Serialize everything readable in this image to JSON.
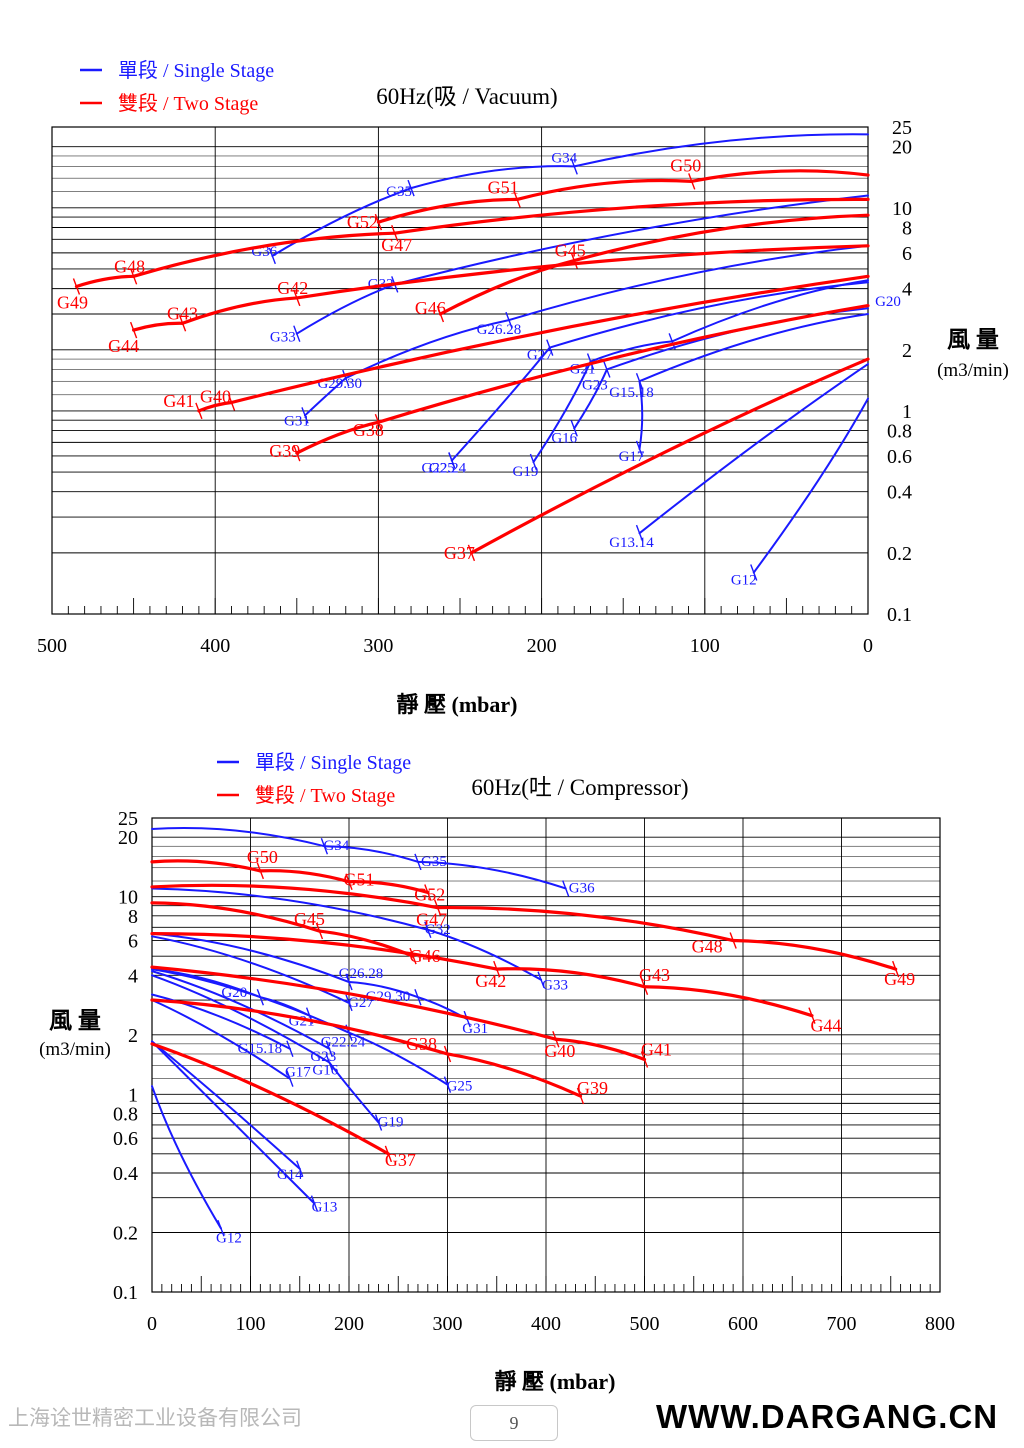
{
  "chart_data": [
    {
      "type": "line",
      "title": "60Hz(吸 / Vacuum)",
      "xlabel": "靜 壓 (mbar)",
      "ylabel": [
        "風 量",
        "(m3/min)"
      ],
      "x_reversed": true,
      "xlim": [
        0,
        500
      ],
      "ylim": [
        0.1,
        25
      ],
      "yscale": "log",
      "x_ticks": [
        500,
        400,
        300,
        200,
        100,
        0
      ],
      "y_ticks": [
        25,
        20,
        10,
        8,
        6,
        4,
        2,
        1,
        0.8,
        0.6,
        0.4,
        0.2,
        0.1
      ],
      "grid": true,
      "legend": {
        "placement": "top-left",
        "entries": [
          {
            "name": "單段 / Single Stage",
            "color": "#1a1aff"
          },
          {
            "name": "雙段 / Two Stage",
            "color": "#ff0000"
          }
        ]
      },
      "series": [
        {
          "name": "G34",
          "stage": "single",
          "x": [
            0,
            180
          ],
          "y": [
            23,
            16
          ]
        },
        {
          "name": "G35",
          "stage": "single",
          "x": [
            180,
            280
          ],
          "y": [
            16,
            12.5
          ]
        },
        {
          "name": "G36",
          "stage": "single",
          "x": [
            280,
            365
          ],
          "y": [
            12.5,
            5.8
          ]
        },
        {
          "name": "G32",
          "stage": "single",
          "x": [
            0,
            290
          ],
          "y": [
            11.5,
            4.2
          ]
        },
        {
          "name": "G33",
          "stage": "single",
          "x": [
            290,
            350
          ],
          "y": [
            4.2,
            2.4
          ]
        },
        {
          "name": "G26.28",
          "stage": "single",
          "x": [
            0,
            220
          ],
          "y": [
            6.5,
            2.8
          ]
        },
        {
          "name": "G29.30",
          "stage": "single",
          "x": [
            220,
            320
          ],
          "y": [
            2.8,
            1.45
          ]
        },
        {
          "name": "G31",
          "stage": "single",
          "x": [
            320,
            345
          ],
          "y": [
            1.45,
            0.95
          ]
        },
        {
          "name": "G27",
          "stage": "single",
          "x": [
            0,
            195
          ],
          "y": [
            4.3,
            2.05
          ]
        },
        {
          "name": "G22.24",
          "stage": "single",
          "x": [
            195,
            255
          ],
          "y": [
            2.05,
            0.57
          ]
        },
        {
          "name": "G25",
          "stage": "single",
          "x": [
            255,
            255
          ],
          "y": [
            0.57,
            0.57
          ]
        },
        {
          "name": "G20",
          "stage": "single",
          "x": [
            0,
            120
          ],
          "y": [
            4.4,
            2.2
          ]
        },
        {
          "name": "G21",
          "stage": "single",
          "x": [
            120,
            170
          ],
          "y": [
            2.2,
            1.75
          ]
        },
        {
          "name": "G19",
          "stage": "single",
          "x": [
            170,
            205
          ],
          "y": [
            1.75,
            0.56
          ]
        },
        {
          "name": "G23",
          "stage": "single",
          "x": [
            0,
            160
          ],
          "y": [
            3.2,
            1.6
          ]
        },
        {
          "name": "G16",
          "stage": "single",
          "x": [
            160,
            180
          ],
          "y": [
            1.6,
            0.82
          ]
        },
        {
          "name": "G15.18",
          "stage": "single",
          "x": [
            0,
            140
          ],
          "y": [
            3.0,
            1.4
          ]
        },
        {
          "name": "G17",
          "stage": "single",
          "x": [
            140,
            140
          ],
          "y": [
            1.4,
            0.65
          ]
        },
        {
          "name": "G13.14",
          "stage": "single",
          "x": [
            0,
            140
          ],
          "y": [
            1.7,
            0.25
          ]
        },
        {
          "name": "G12",
          "stage": "single",
          "x": [
            0,
            70
          ],
          "y": [
            1.15,
            0.16
          ]
        },
        {
          "name": "G50",
          "stage": "two",
          "x": [
            0,
            108
          ],
          "y": [
            14.5,
            13.5
          ]
        },
        {
          "name": "G51",
          "stage": "two",
          "x": [
            108,
            215
          ],
          "y": [
            13.5,
            11
          ]
        },
        {
          "name": "G52",
          "stage": "two",
          "x": [
            215,
            300
          ],
          "y": [
            11,
            8.5
          ]
        },
        {
          "name": "G47",
          "stage": "two",
          "x": [
            0,
            290
          ],
          "y": [
            11,
            7.5
          ]
        },
        {
          "name": "G48",
          "stage": "two",
          "x": [
            290,
            450
          ],
          "y": [
            7.5,
            4.6
          ]
        },
        {
          "name": "G49",
          "stage": "two",
          "x": [
            450,
            485
          ],
          "y": [
            4.6,
            4.1
          ]
        },
        {
          "name": "G45",
          "stage": "two",
          "x": [
            0,
            180
          ],
          "y": [
            9.2,
            5.5
          ]
        },
        {
          "name": "G46",
          "stage": "two",
          "x": [
            180,
            262
          ],
          "y": [
            5.5,
            3
          ]
        },
        {
          "name": "G42",
          "stage": "two",
          "x": [
            0,
            350
          ],
          "y": [
            6.5,
            3.6
          ]
        },
        {
          "name": "G43",
          "stage": "two",
          "x": [
            350,
            420
          ],
          "y": [
            3.6,
            2.7
          ]
        },
        {
          "name": "G44",
          "stage": "two",
          "x": [
            420,
            450
          ],
          "y": [
            2.7,
            2.5
          ]
        },
        {
          "name": "G40",
          "stage": "two",
          "x": [
            0,
            390
          ],
          "y": [
            4.6,
            1.1
          ]
        },
        {
          "name": "G41",
          "stage": "two",
          "x": [
            390,
            410
          ],
          "y": [
            1.1,
            1.0
          ]
        },
        {
          "name": "G38",
          "stage": "two",
          "x": [
            0,
            300
          ],
          "y": [
            3.3,
            0.88
          ]
        },
        {
          "name": "G39",
          "stage": "two",
          "x": [
            300,
            350
          ],
          "y": [
            0.88,
            0.62
          ]
        },
        {
          "name": "G37",
          "stage": "two",
          "x": [
            0,
            243
          ],
          "y": [
            1.8,
            0.2
          ]
        }
      ]
    },
    {
      "type": "line",
      "title": "60Hz(吐 / Compressor)",
      "xlabel": "靜 壓 (mbar)",
      "ylabel": [
        "風 量",
        "(m3/min)"
      ],
      "xlim": [
        0,
        800
      ],
      "ylim": [
        0.1,
        25
      ],
      "yscale": "log",
      "x_ticks": [
        0,
        100,
        200,
        300,
        400,
        500,
        600,
        700,
        800
      ],
      "y_ticks": [
        25,
        20,
        10,
        8,
        6,
        4,
        2,
        1,
        0.8,
        0.6,
        0.4,
        0.2,
        0.1
      ],
      "grid": true,
      "legend": {
        "placement": "top-left",
        "entries": [
          {
            "name": "單段 / Single Stage",
            "color": "#1a1aff"
          },
          {
            "name": "雙段 / Two Stage",
            "color": "#ff0000"
          }
        ]
      },
      "series": [
        {
          "name": "G34",
          "stage": "single",
          "x": [
            0,
            175
          ],
          "y": [
            22,
            18
          ]
        },
        {
          "name": "G35",
          "stage": "single",
          "x": [
            175,
            270
          ],
          "y": [
            18,
            15
          ]
        },
        {
          "name": "G36",
          "stage": "single",
          "x": [
            270,
            420
          ],
          "y": [
            15,
            11
          ]
        },
        {
          "name": "G32",
          "stage": "single",
          "x": [
            0,
            280
          ],
          "y": [
            11,
            6.8
          ]
        },
        {
          "name": "G33",
          "stage": "single",
          "x": [
            280,
            395
          ],
          "y": [
            6.8,
            3.8
          ]
        },
        {
          "name": "G26.28",
          "stage": "single",
          "x": [
            0,
            200
          ],
          "y": [
            6.5,
            3.7
          ]
        },
        {
          "name": "G29.30",
          "stage": "single",
          "x": [
            200,
            270
          ],
          "y": [
            3.7,
            3.1
          ]
        },
        {
          "name": "G31",
          "stage": "single",
          "x": [
            270,
            320
          ],
          "y": [
            3.1,
            2.4
          ]
        },
        {
          "name": "G27",
          "stage": "single",
          "x": [
            0,
            200
          ],
          "y": [
            6.3,
            2.9
          ]
        },
        {
          "name": "G22.24",
          "stage": "single",
          "x": [
            0,
            200
          ],
          "y": [
            4.3,
            2.05
          ]
        },
        {
          "name": "G25",
          "stage": "single",
          "x": [
            200,
            300
          ],
          "y": [
            2.05,
            1.12
          ]
        },
        {
          "name": "G20",
          "stage": "single",
          "x": [
            0,
            110
          ],
          "y": [
            4.3,
            3.1
          ]
        },
        {
          "name": "G21",
          "stage": "single",
          "x": [
            110,
            160
          ],
          "y": [
            3.1,
            2.5
          ]
        },
        {
          "name": "G23",
          "stage": "single",
          "x": [
            0,
            180
          ],
          "y": [
            4.2,
            1.7
          ]
        },
        {
          "name": "G16",
          "stage": "single",
          "x": [
            0,
            180
          ],
          "y": [
            4.0,
            1.45
          ]
        },
        {
          "name": "G19",
          "stage": "single",
          "x": [
            180,
            230
          ],
          "y": [
            1.45,
            0.72
          ]
        },
        {
          "name": "G15.18",
          "stage": "single",
          "x": [
            0,
            140
          ],
          "y": [
            3.2,
            1.7
          ]
        },
        {
          "name": "G17",
          "stage": "single",
          "x": [
            0,
            140
          ],
          "y": [
            3.0,
            1.2
          ]
        },
        {
          "name": "G13",
          "stage": "single",
          "x": [
            0,
            165
          ],
          "y": [
            1.85,
            0.28
          ]
        },
        {
          "name": "G14",
          "stage": "single",
          "x": [
            0,
            150
          ],
          "y": [
            1.85,
            0.42
          ]
        },
        {
          "name": "G12",
          "stage": "single",
          "x": [
            0,
            70
          ],
          "y": [
            1.1,
            0.21
          ]
        },
        {
          "name": "G50",
          "stage": "two",
          "x": [
            0,
            110
          ],
          "y": [
            15,
            13.5
          ]
        },
        {
          "name": "G51",
          "stage": "two",
          "x": [
            110,
            200
          ],
          "y": [
            13.5,
            11.9
          ]
        },
        {
          "name": "G52",
          "stage": "two",
          "x": [
            200,
            280
          ],
          "y": [
            11.9,
            10.5
          ]
        },
        {
          "name": "G47",
          "stage": "two",
          "x": [
            0,
            290
          ],
          "y": [
            11.2,
            8.8
          ]
        },
        {
          "name": "G48",
          "stage": "two",
          "x": [
            290,
            590
          ],
          "y": [
            8.8,
            6.0
          ]
        },
        {
          "name": "G49",
          "stage": "two",
          "x": [
            590,
            755
          ],
          "y": [
            6.0,
            4.3
          ]
        },
        {
          "name": "G45",
          "stage": "two",
          "x": [
            0,
            170
          ],
          "y": [
            9.3,
            6.7
          ]
        },
        {
          "name": "G46",
          "stage": "two",
          "x": [
            170,
            265
          ],
          "y": [
            6.7,
            5.0
          ]
        },
        {
          "name": "G42",
          "stage": "two",
          "x": [
            0,
            350
          ],
          "y": [
            6.5,
            4.3
          ]
        },
        {
          "name": "G43",
          "stage": "two",
          "x": [
            350,
            500
          ],
          "y": [
            4.3,
            3.5
          ]
        },
        {
          "name": "G44",
          "stage": "two",
          "x": [
            500,
            670
          ],
          "y": [
            3.5,
            2.5
          ]
        },
        {
          "name": "G40",
          "stage": "two",
          "x": [
            0,
            410
          ],
          "y": [
            4.4,
            1.9
          ]
        },
        {
          "name": "G41",
          "stage": "two",
          "x": [
            410,
            500
          ],
          "y": [
            1.9,
            1.5
          ]
        },
        {
          "name": "G38",
          "stage": "two",
          "x": [
            0,
            300
          ],
          "y": [
            3.0,
            1.6
          ]
        },
        {
          "name": "G39",
          "stage": "two",
          "x": [
            300,
            435
          ],
          "y": [
            1.6,
            0.98
          ]
        },
        {
          "name": "G37",
          "stage": "two",
          "x": [
            0,
            240
          ],
          "y": [
            1.8,
            0.5
          ]
        }
      ]
    }
  ],
  "footer": {
    "company": "上海诠世精密工业设备有限公司",
    "page_number": "9",
    "website": "WWW.DARGANG.CN"
  }
}
